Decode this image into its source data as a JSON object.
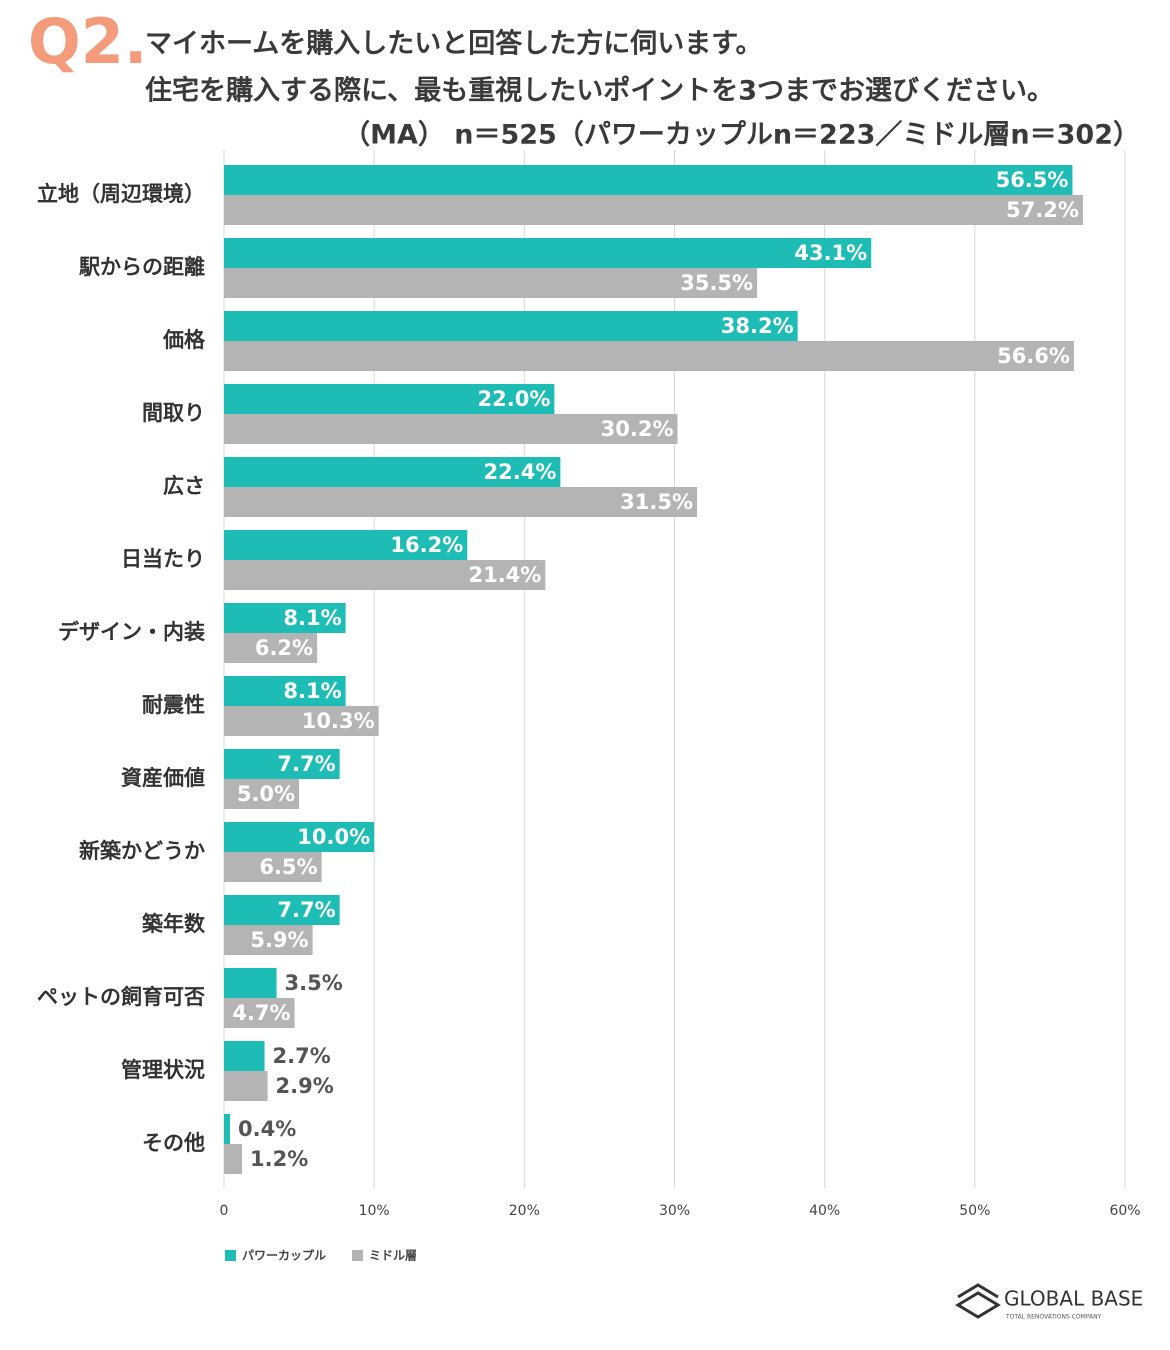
{
  "chart_data": {
    "type": "bar",
    "orientation": "horizontal",
    "question_number": "Q2.",
    "title": "マイホームを購入したいと回答した方に伺います。",
    "subtitle": "住宅を購入する際に、最も重視したいポイントを3つまでお選びください。",
    "sample_note": "（MA） n＝525（パワーカップルn＝223／ミドル層n＝302）",
    "categories": [
      "立地（周辺環境）",
      "駅からの距離",
      "価格",
      "間取り",
      "広さ",
      "日当たり",
      "デザイン・内装",
      "耐震性",
      "資産価値",
      "新築かどうか",
      "築年数",
      "ペットの飼育可否",
      "管理状況",
      "その他"
    ],
    "series": [
      {
        "name": "パワーカップル",
        "color": "#1dbdb6",
        "values": [
          56.5,
          43.1,
          38.2,
          22.0,
          22.4,
          16.2,
          8.1,
          8.1,
          7.7,
          10.0,
          7.7,
          3.5,
          2.7,
          0.4
        ],
        "value_labels": [
          "56.5%",
          "43.1%",
          "38.2%",
          "22.0%",
          "22.4%",
          "16.2%",
          "8.1%",
          "8.1%",
          "7.7%",
          "10.0%",
          "7.7%",
          "3.5%",
          "2.7%",
          "0.4%"
        ]
      },
      {
        "name": "ミドル層",
        "color": "#b4b4b4",
        "values": [
          57.2,
          35.5,
          56.6,
          30.2,
          31.5,
          21.4,
          6.2,
          10.3,
          5.0,
          6.5,
          5.9,
          4.7,
          2.9,
          1.2
        ],
        "value_labels": [
          "57.2%",
          "35.5%",
          "56.6%",
          "30.2%",
          "31.5%",
          "21.4%",
          "6.2%",
          "10.3%",
          "5.0%",
          "6.5%",
          "5.9%",
          "4.7%",
          "2.9%",
          "1.2%"
        ]
      }
    ],
    "xlim": [
      0,
      60
    ],
    "xticks": [
      0,
      {
        "value": 10,
        "label": "10%"
      },
      {
        "value": 20,
        "label": "20%"
      },
      {
        "value": 30,
        "label": "30%"
      },
      {
        "value": 40,
        "label": "40%"
      },
      {
        "value": 50,
        "label": "50%"
      },
      {
        "value": 60,
        "label": "60%"
      }
    ],
    "grid": true,
    "legend": "bottom-left"
  },
  "logo": {
    "name": "GLOBAL BASE",
    "tagline": "TOTAL RENOVATIONS COMPANY"
  }
}
